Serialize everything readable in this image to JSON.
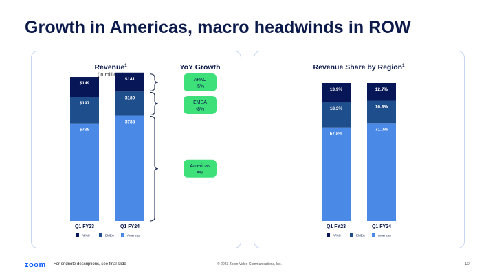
{
  "title": "Growth in Americas, macro headwinds in ROW",
  "colors": {
    "apac": "#071656",
    "emea": "#1f4e8c",
    "americas": "#4a8ae6",
    "pill_bg": "#3ee07a",
    "pill_text": "#0b1a4a",
    "bracket": "#0b1a4a"
  },
  "chart_data": [
    {
      "type": "bar",
      "stacked": true,
      "title": "Revenue",
      "title_superscript": "1",
      "subtitle": "(in millions)",
      "categories": [
        "Q1 FY23",
        "Q1 FY24"
      ],
      "series": [
        {
          "name": "Americas",
          "values": [
            728,
            785
          ],
          "labels": [
            "$728",
            "$785"
          ]
        },
        {
          "name": "EMEA",
          "values": [
            197,
            180
          ],
          "labels": [
            "$197",
            "$180"
          ]
        },
        {
          "name": "APAC",
          "values": [
            149,
            141
          ],
          "labels": [
            "$149",
            "$141"
          ]
        }
      ],
      "legend": [
        "APAC",
        "EMEA",
        "Americas"
      ],
      "legend_position": "bottom",
      "annotations_header": "YoY Growth",
      "annotations": [
        {
          "region": "APAC",
          "value": "-5%"
        },
        {
          "region": "EMEA",
          "value": "-8%"
        },
        {
          "region": "Americas",
          "value": "8%"
        }
      ]
    },
    {
      "type": "bar",
      "stacked": true,
      "title": "Revenue Share by Region",
      "title_superscript": "1",
      "categories": [
        "Q1 FY23",
        "Q1 FY24"
      ],
      "series": [
        {
          "name": "Americas",
          "values": [
            67.8,
            71.0
          ],
          "labels": [
            "67.8%",
            "71.0%"
          ]
        },
        {
          "name": "EMEA",
          "values": [
            18.3,
            16.3
          ],
          "labels": [
            "18.3%",
            "16.3%"
          ]
        },
        {
          "name": "APAC",
          "values": [
            13.9,
            12.7
          ],
          "labels": [
            "13.9%",
            "12.7%"
          ]
        }
      ],
      "legend": [
        "APAC",
        "EMEA",
        "Americas"
      ],
      "legend_position": "bottom"
    }
  ],
  "footer": {
    "logo": "zoom",
    "note": "For endnote descriptions, see final slide",
    "copyright": "© 2023 Zoom Video Communications, Inc.",
    "page": "10"
  }
}
